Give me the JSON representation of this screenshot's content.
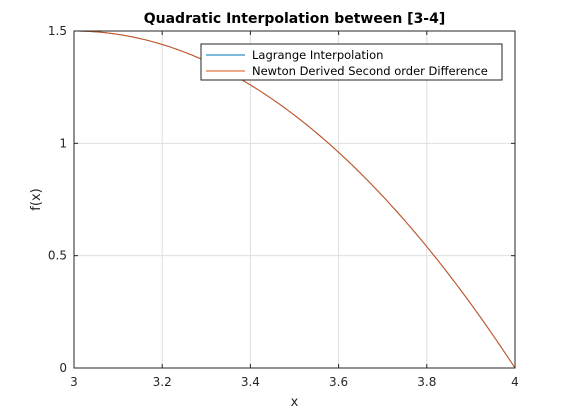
{
  "chart_data": {
    "type": "line",
    "title": "Quadratic Interpolation between [3-4]",
    "xlabel": "x",
    "ylabel": "f(x)",
    "xlim": [
      3,
      4
    ],
    "ylim": [
      0,
      1.5
    ],
    "xticks": [
      "3",
      "3.2",
      "3.4",
      "3.6",
      "3.8",
      "4"
    ],
    "yticks": [
      "0",
      "0.5",
      "1",
      "1.5"
    ],
    "grid": true,
    "legend_location": "top-right",
    "series": [
      {
        "name": "Lagrange Interpolation",
        "color": "#0072BD",
        "x": [
          3.0,
          3.1,
          3.2,
          3.3,
          3.4,
          3.5,
          3.6,
          3.7,
          3.8,
          3.9,
          4.0
        ],
        "y": [
          1.5,
          1.485,
          1.44,
          1.365,
          1.26,
          1.125,
          0.96,
          0.765,
          0.54,
          0.285,
          0.0
        ]
      },
      {
        "name": "Newton Derived Second order Difference",
        "color": "#D95319",
        "x": [
          3.0,
          3.1,
          3.2,
          3.3,
          3.4,
          3.5,
          3.6,
          3.7,
          3.8,
          3.9,
          4.0
        ],
        "y": [
          1.5,
          1.485,
          1.44,
          1.365,
          1.26,
          1.125,
          0.96,
          0.765,
          0.54,
          0.285,
          0.0
        ]
      }
    ]
  }
}
